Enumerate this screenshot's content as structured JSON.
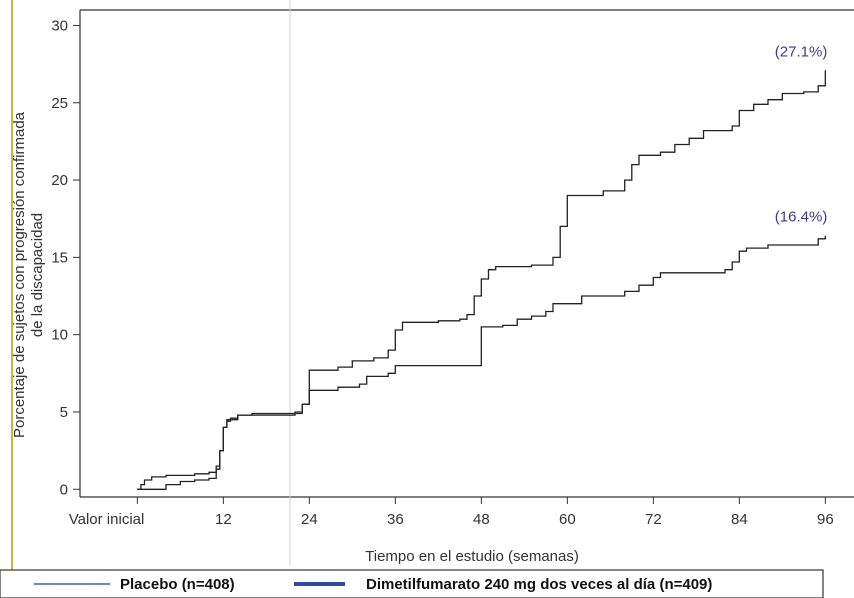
{
  "chart_data": {
    "type": "line",
    "xlabel": "Tiempo en el estudio (semanas)",
    "ylabel": "Porcentaje de sujetos con progresión confirmada de la discapacidad",
    "ylabel_lines": [
      "Porcentaje de sujetos con progresión confirmada",
      "de la discapacidad"
    ],
    "x_tick_labels": [
      "Valor inicial",
      "12",
      "24",
      "36",
      "48",
      "60",
      "72",
      "84",
      "96"
    ],
    "x_tick_values": [
      0,
      12,
      24,
      36,
      48,
      60,
      72,
      84,
      96
    ],
    "y_ticks": [
      0,
      5,
      10,
      15,
      20,
      25,
      30
    ],
    "xlim": [
      -8,
      100
    ],
    "ylim": [
      -0.5,
      31
    ],
    "grid": false,
    "legend_position": "bottom",
    "legend": [
      {
        "label": "Placebo (n=408)",
        "color": "#3b5fc0",
        "line_weight": "thin"
      },
      {
        "label": "Dimetilfumarato 240 mg dos veces al día (n=409)",
        "color": "#2a4aa8",
        "line_weight": "thick"
      }
    ],
    "series": [
      {
        "end_label": "(27.1%)",
        "points": [
          [
            0,
            0
          ],
          [
            0.5,
            0.3
          ],
          [
            1,
            0.6
          ],
          [
            2,
            0.8
          ],
          [
            4,
            0.9
          ],
          [
            8,
            1.0
          ],
          [
            10,
            1.1
          ],
          [
            11,
            1.5
          ],
          [
            11.5,
            2.5
          ],
          [
            12,
            4.0
          ],
          [
            12.5,
            4.4
          ],
          [
            13,
            4.6
          ],
          [
            14,
            4.8
          ],
          [
            16,
            4.9
          ],
          [
            22,
            4.9
          ],
          [
            23,
            5.5
          ],
          [
            24,
            7.7
          ],
          [
            28,
            7.9
          ],
          [
            30,
            8.3
          ],
          [
            33,
            8.5
          ],
          [
            35,
            9.0
          ],
          [
            36,
            10.3
          ],
          [
            37,
            10.8
          ],
          [
            42,
            10.9
          ],
          [
            45,
            11.0
          ],
          [
            46,
            11.3
          ],
          [
            47,
            12.5
          ],
          [
            48,
            13.6
          ],
          [
            49,
            14.2
          ],
          [
            50,
            14.4
          ],
          [
            55,
            14.5
          ],
          [
            58,
            15.0
          ],
          [
            59,
            17.0
          ],
          [
            60,
            19.0
          ],
          [
            65,
            19.3
          ],
          [
            68,
            20.0
          ],
          [
            69,
            21.0
          ],
          [
            70,
            21.6
          ],
          [
            73,
            21.8
          ],
          [
            75,
            22.3
          ],
          [
            77,
            22.7
          ],
          [
            79,
            23.2
          ],
          [
            83,
            23.5
          ],
          [
            84,
            24.5
          ],
          [
            86,
            24.9
          ],
          [
            88,
            25.2
          ],
          [
            90,
            25.6
          ],
          [
            93,
            25.7
          ],
          [
            95,
            26.1
          ],
          [
            96,
            27.1
          ]
        ]
      },
      {
        "end_label": "(16.4%)",
        "points": [
          [
            0,
            0
          ],
          [
            2,
            0
          ],
          [
            4,
            0.3
          ],
          [
            6,
            0.5
          ],
          [
            8,
            0.6
          ],
          [
            10,
            0.7
          ],
          [
            11,
            1.3
          ],
          [
            11.5,
            2.5
          ],
          [
            12,
            4.0
          ],
          [
            12.5,
            4.5
          ],
          [
            14,
            4.8
          ],
          [
            16,
            4.8
          ],
          [
            21,
            4.8
          ],
          [
            22,
            5.0
          ],
          [
            23,
            5.5
          ],
          [
            24,
            6.4
          ],
          [
            28,
            6.6
          ],
          [
            31,
            6.8
          ],
          [
            32,
            7.3
          ],
          [
            35,
            7.5
          ],
          [
            36,
            8.0
          ],
          [
            40,
            8.0
          ],
          [
            47,
            8.0
          ],
          [
            48,
            10.5
          ],
          [
            51,
            10.6
          ],
          [
            53,
            11.0
          ],
          [
            55,
            11.2
          ],
          [
            57,
            11.5
          ],
          [
            58,
            12.0
          ],
          [
            62,
            12.5
          ],
          [
            66,
            12.5
          ],
          [
            68,
            12.8
          ],
          [
            70,
            13.2
          ],
          [
            72,
            13.7
          ],
          [
            73,
            14.0
          ],
          [
            78,
            14.0
          ],
          [
            82,
            14.2
          ],
          [
            83,
            14.7
          ],
          [
            84,
            15.4
          ],
          [
            85,
            15.6
          ],
          [
            88,
            15.8
          ],
          [
            94,
            15.8
          ],
          [
            95,
            16.2
          ],
          [
            96,
            16.4
          ]
        ]
      }
    ]
  }
}
